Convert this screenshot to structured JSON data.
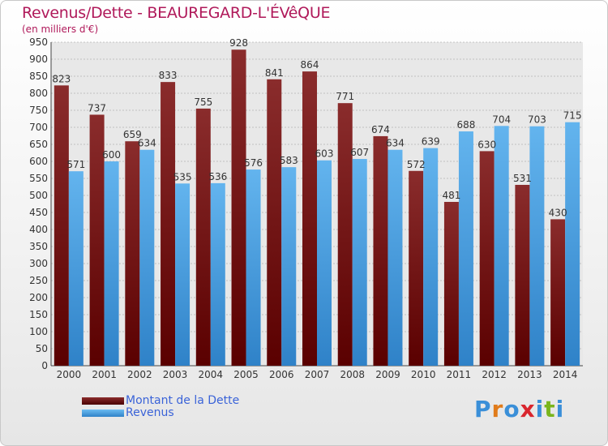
{
  "title": "Revenus/Dette - BEAUREGARD-L'ÉVêQUE",
  "subtitle": "(en milliers d'€)",
  "colors": {
    "dette_dark": "#5a0000",
    "dette_light": "#8a2c2c",
    "revenus_dark": "#2f82c8",
    "revenus_light": "#63b4ee",
    "grid": "#9a9a9a",
    "text": "#333333",
    "title": "#b0195a",
    "legend_text": "#3a63d8"
  },
  "legend": [
    {
      "label": "Montant de la Dette",
      "color": "#6e1414"
    },
    {
      "label": "Revenus",
      "color": "#4aa3e6"
    }
  ],
  "logo": {
    "text": "Proxiti",
    "letter_colors": [
      "#3a8fd8",
      "#e07b1a",
      "#3a8fd8",
      "#d9262e",
      "#3a8fd8",
      "#7ab51d",
      "#3a8fd8"
    ]
  },
  "chart_data": {
    "type": "bar",
    "categories": [
      "2000",
      "2001",
      "2002",
      "2003",
      "2004",
      "2005",
      "2006",
      "2007",
      "2008",
      "2009",
      "2010",
      "2011",
      "2012",
      "2013",
      "2014"
    ],
    "series": [
      {
        "name": "Montant de la Dette",
        "values": [
          823,
          737,
          659,
          833,
          755,
          928,
          841,
          864,
          771,
          674,
          572,
          481,
          630,
          531,
          430
        ]
      },
      {
        "name": "Revenus",
        "values": [
          571,
          600,
          634,
          535,
          536,
          576,
          583,
          603,
          607,
          634,
          639,
          688,
          704,
          703,
          715
        ]
      }
    ],
    "ylim": [
      0,
      950
    ],
    "ytick_step": 50,
    "grid": true,
    "legend_position": "bottom-left"
  }
}
